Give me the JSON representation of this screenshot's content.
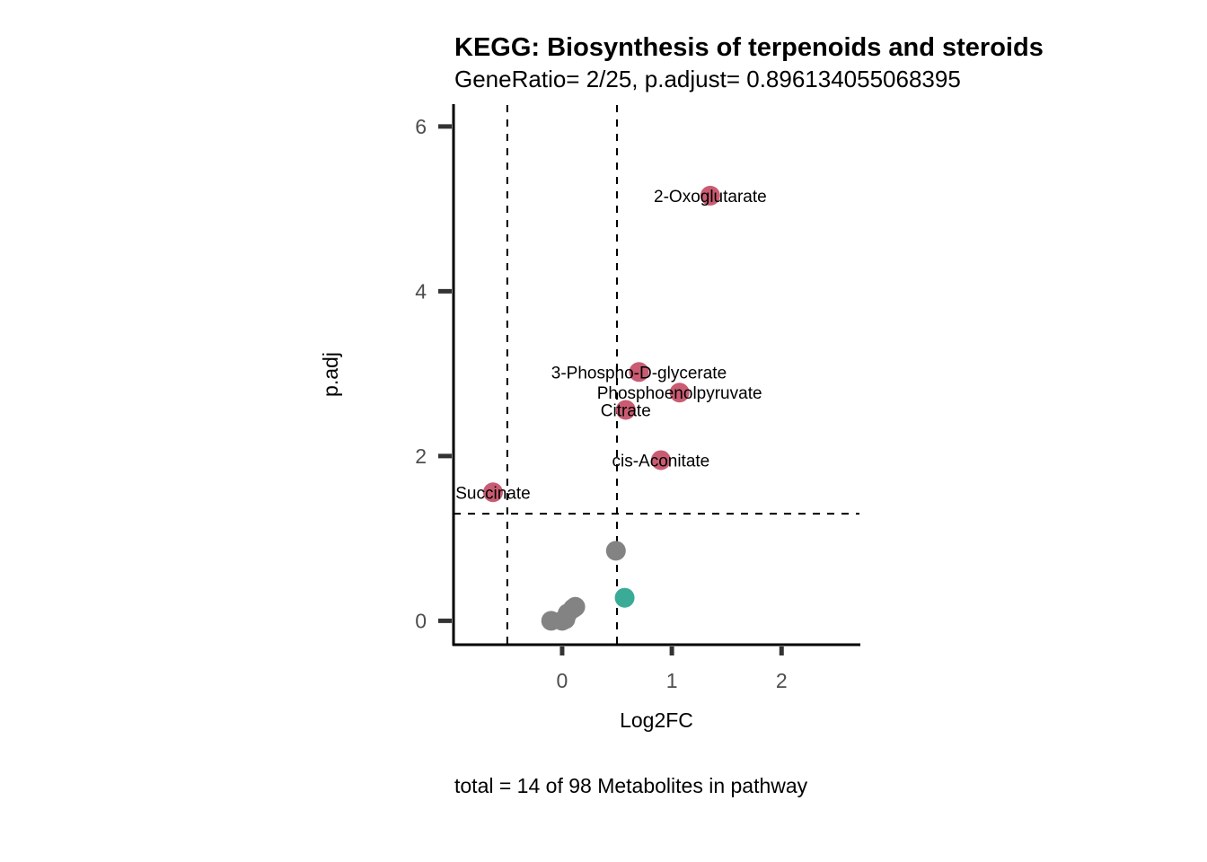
{
  "chart_data": {
    "type": "scatter",
    "title": "KEGG: Biosynthesis of terpenoids and steroids",
    "subtitle": "GeneRatio= 2/25, p.adjust= 0.896134055068395",
    "xlabel": "Log2FC",
    "ylabel": "p.adj",
    "caption": "total = 14 of 98 Metabolites in pathway",
    "xlim": [
      -0.99,
      2.71
    ],
    "ylim": [
      -0.29,
      6.26
    ],
    "x_ticks": [
      0,
      1,
      2
    ],
    "y_ticks": [
      0,
      2,
      4,
      6
    ],
    "grid": false,
    "thresholds": {
      "vertical": [
        -0.5,
        0.5
      ],
      "horizontal": 1.3
    },
    "colors": {
      "significant": "#c95c72",
      "not_significant": "#838383",
      "up_not_significant": "#3aab97"
    },
    "points": [
      {
        "label": "2-Oxoglutarate",
        "x": 1.35,
        "y": 5.16,
        "group": "significant"
      },
      {
        "label": "3-Phospho-D-glycerate",
        "x": 0.7,
        "y": 3.02,
        "group": "significant"
      },
      {
        "label": "Phosphoenolpyruvate",
        "x": 1.07,
        "y": 2.77,
        "group": "significant"
      },
      {
        "label": "Citrate",
        "x": 0.58,
        "y": 2.56,
        "group": "significant"
      },
      {
        "label": "cis-Aconitate",
        "x": 0.9,
        "y": 1.95,
        "group": "significant"
      },
      {
        "label": "Succinate",
        "x": -0.63,
        "y": 1.56,
        "group": "significant"
      },
      {
        "label": "",
        "x": 0.49,
        "y": 0.85,
        "group": "not_significant"
      },
      {
        "label": "",
        "x": 0.57,
        "y": 0.28,
        "group": "up_not_significant"
      },
      {
        "label": "",
        "x": -0.1,
        "y": 0.0,
        "group": "not_significant"
      },
      {
        "label": "",
        "x": 0.0,
        "y": 0.0,
        "group": "not_significant"
      },
      {
        "label": "",
        "x": 0.03,
        "y": 0.02,
        "group": "not_significant"
      },
      {
        "label": "",
        "x": 0.05,
        "y": 0.09,
        "group": "not_significant"
      },
      {
        "label": "",
        "x": 0.1,
        "y": 0.15,
        "group": "not_significant"
      },
      {
        "label": "",
        "x": 0.12,
        "y": 0.17,
        "group": "not_significant"
      }
    ]
  }
}
